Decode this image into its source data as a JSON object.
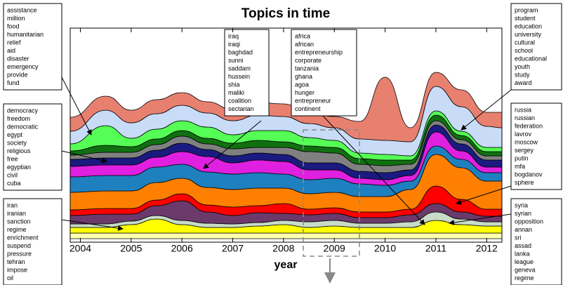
{
  "chart_data": {
    "type": "streamgraph",
    "title": "Topics in time",
    "x_label": "year",
    "xlim": [
      2003.8,
      2012.3
    ],
    "xticks": [
      2004,
      2005,
      2006,
      2007,
      2008,
      2009,
      2010,
      2011,
      2012
    ],
    "x": [
      2003.8,
      2004.5,
      2005,
      2005.5,
      2006,
      2006.5,
      2007,
      2007.5,
      2008,
      2008.5,
      2009,
      2009.5,
      2010,
      2010.5,
      2011,
      2011.5,
      2012,
      2012.3
    ],
    "series": [
      {
        "color": "#ffffb0",
        "values": [
          8,
          8,
          8,
          8,
          8,
          8,
          8,
          8,
          8,
          8,
          8,
          8,
          8,
          8,
          8,
          8,
          8,
          8
        ]
      },
      {
        "color": "#ffff00",
        "values": [
          8,
          8,
          12,
          20,
          12,
          8,
          8,
          10,
          12,
          8,
          10,
          8,
          8,
          8,
          18,
          12,
          10,
          10
        ]
      },
      {
        "color": "#c8dcc8",
        "values": [
          5,
          5,
          5,
          5,
          6,
          6,
          5,
          5,
          6,
          8,
          8,
          6,
          6,
          8,
          12,
          8,
          6,
          6
        ]
      },
      {
        "color": "#6b3a6b",
        "values": [
          12,
          14,
          10,
          14,
          28,
          16,
          12,
          14,
          10,
          10,
          10,
          8,
          8,
          10,
          12,
          10,
          8,
          8
        ]
      },
      {
        "color": "#ff0000",
        "values": [
          8,
          8,
          8,
          8,
          10,
          10,
          12,
          10,
          14,
          8,
          8,
          8,
          8,
          8,
          25,
          18,
          10,
          10
        ]
      },
      {
        "color": "#ff8000",
        "values": [
          25,
          25,
          25,
          25,
          22,
          25,
          25,
          25,
          22,
          22,
          22,
          22,
          22,
          28,
          45,
          45,
          40,
          40
        ]
      },
      {
        "color": "#1f80c0",
        "values": [
          22,
          22,
          22,
          22,
          20,
          22,
          22,
          22,
          20,
          20,
          20,
          18,
          16,
          12,
          12,
          12,
          12,
          12
        ]
      },
      {
        "color": "#e020e0",
        "values": [
          15,
          15,
          15,
          14,
          18,
          22,
          16,
          18,
          18,
          14,
          12,
          8,
          8,
          8,
          20,
          12,
          8,
          8
        ]
      },
      {
        "color": "#1a1a80",
        "values": [
          10,
          10,
          10,
          10,
          12,
          10,
          10,
          10,
          10,
          10,
          10,
          10,
          10,
          8,
          10,
          10,
          10,
          10
        ]
      },
      {
        "color": "#808080",
        "values": [
          6,
          8,
          8,
          8,
          10,
          8,
          10,
          8,
          10,
          16,
          14,
          10,
          10,
          8,
          6,
          6,
          6,
          6
        ]
      },
      {
        "color": "#107010",
        "values": [
          6,
          10,
          8,
          8,
          8,
          8,
          8,
          10,
          8,
          8,
          8,
          8,
          8,
          6,
          8,
          6,
          6,
          6
        ]
      },
      {
        "color": "#55ff55",
        "values": [
          10,
          28,
          12,
          14,
          14,
          16,
          12,
          14,
          16,
          12,
          10,
          8,
          8,
          6,
          6,
          6,
          6,
          6
        ]
      },
      {
        "color": "#c8dcf8",
        "values": [
          18,
          22,
          22,
          22,
          22,
          20,
          20,
          22,
          20,
          20,
          18,
          20,
          20,
          20,
          35,
          35,
          30,
          28
        ]
      },
      {
        "color": "#e88070",
        "values": [
          20,
          20,
          18,
          20,
          18,
          16,
          16,
          18,
          18,
          16,
          16,
          25,
          90,
          20,
          20,
          24,
          20,
          22
        ]
      }
    ],
    "annotations": [
      {
        "words": [
          "assistance",
          "million",
          "food",
          "humanitarian",
          "relief",
          "aid",
          "disaster",
          "emergency",
          "provide",
          "fund"
        ]
      },
      {
        "words": [
          "democracy",
          "freedom",
          "democratic",
          "egypt",
          "society",
          "religious",
          "free",
          "egyptian",
          "civil",
          "cuba"
        ]
      },
      {
        "words": [
          "iran",
          "iranian",
          "sanction",
          "regime",
          "enrichment",
          "suspend",
          "pressure",
          "tehran",
          "impose",
          "oil"
        ]
      },
      {
        "words": [
          "iraq",
          "iraqi",
          "baghdad",
          "sunni",
          "saddam",
          "hussein",
          "shia",
          "maliki",
          "coalition",
          "sectarian"
        ]
      },
      {
        "words": [
          "africa",
          "african",
          "entrepreneurship",
          "corporate",
          "tanzania",
          "ghana",
          "agoa",
          "hunger",
          "entrepreneur",
          "continent"
        ]
      },
      {
        "words": [
          "program",
          "student",
          "education",
          "university",
          "cultural",
          "school",
          "educational",
          "youth",
          "study",
          "award"
        ]
      },
      {
        "words": [
          "russia",
          "russian",
          "federation",
          "lavrov",
          "moscow",
          "sergey",
          "putin",
          "mfa",
          "bogdanov",
          "sphere"
        ]
      },
      {
        "words": [
          "syria",
          "syrian",
          "opposition",
          "annan",
          "sri",
          "assad",
          "lanka",
          "league",
          "geneva",
          "regime"
        ]
      }
    ]
  }
}
